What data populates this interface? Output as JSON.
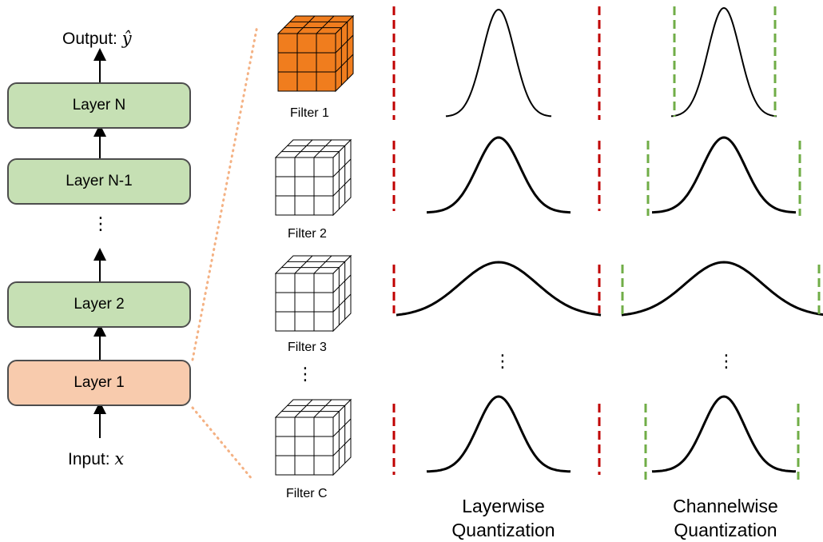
{
  "network": {
    "output_label": "Output:",
    "output_symbol": "ŷ",
    "input_label": "Input:",
    "input_symbol": "x",
    "layers": [
      "Layer N",
      "Layer N-1",
      "Layer 2",
      "Layer 1"
    ],
    "ellipsis": "⋮"
  },
  "filters": {
    "labels": [
      "Filter 1",
      "Filter 2",
      "Filter 3",
      "Filter C"
    ],
    "ellipsis": "⋮",
    "highlight_color": "#f07d1e"
  },
  "columns": {
    "layerwise_line1": "Layerwise",
    "layerwise_line2": "Quantization",
    "channelwise_line1": "Channelwise",
    "channelwise_line2": "Quantization",
    "ellipsis": "⋮"
  },
  "colors": {
    "layer_green": "#c6e0b4",
    "layer_highlight": "#f8cbad",
    "layerwise_range": "#c00000",
    "channelwise_range": "#70ad47",
    "connector": "#f4b183"
  }
}
